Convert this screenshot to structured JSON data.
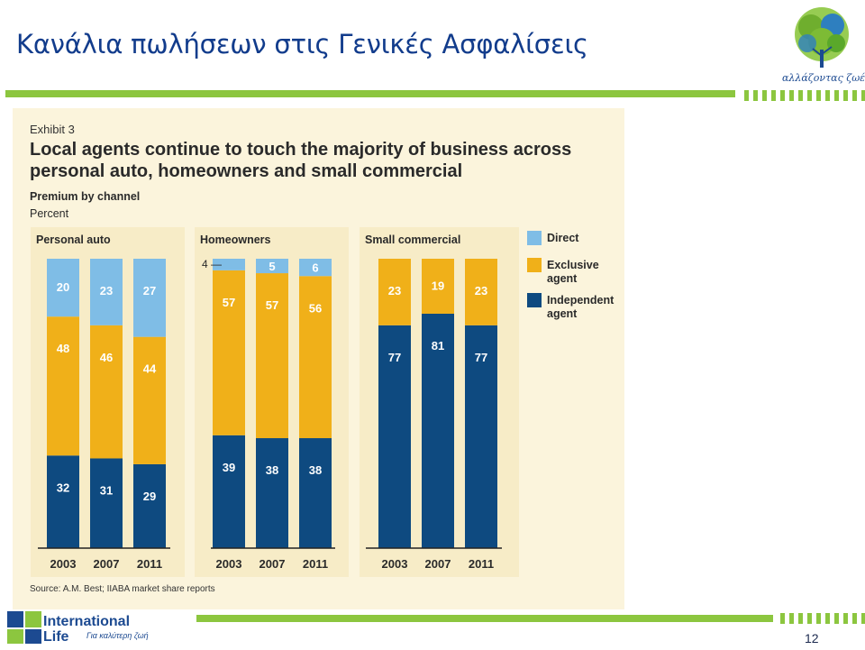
{
  "slide": {
    "title": "Κανάλια πωλήσεων στις Γενικές Ασφαλίσεις",
    "logo_caption": "αλλάζοντας ζωές",
    "page_number": "12",
    "brand_line1": "International",
    "brand_line2": "Life",
    "brand_tagline": "Για καλύτερη ζωή"
  },
  "colors": {
    "title": "#123c8c",
    "green": "#8cc63f",
    "panel": "#fbf4dc",
    "group_panel": "#f7ecc7",
    "direct": "#7fbde6",
    "exclusive": "#f0b019",
    "independent": "#0e4a80"
  },
  "chart_data": {
    "type": "bar",
    "stacked": true,
    "exhibit": "Exhibit 3",
    "title": "Local agents continue to touch the majority of business across personal auto, homeowners and small commercial",
    "subtitle": "Premium by channel",
    "unit": "Percent",
    "source": "Source: A.M. Best; IIABA market share reports",
    "ylim": [
      0,
      100
    ],
    "legend": {
      "placement": "right",
      "entries": [
        {
          "name": "Direct",
          "color": "#7fbde6"
        },
        {
          "name": "Exclusive agent",
          "color": "#f0b019"
        },
        {
          "name": "Independent agent",
          "color": "#0e4a80"
        }
      ]
    },
    "groups": [
      {
        "name": "Personal auto",
        "categories": [
          "2003",
          "2007",
          "2011"
        ],
        "series": [
          {
            "name": "Independent agent",
            "values": [
              32,
              31,
              29
            ]
          },
          {
            "name": "Exclusive agent",
            "values": [
              48,
              46,
              44
            ]
          },
          {
            "name": "Direct",
            "values": [
              20,
              23,
              27
            ]
          }
        ]
      },
      {
        "name": "Homeowners",
        "categories": [
          "2003",
          "2007",
          "2011"
        ],
        "series": [
          {
            "name": "Independent agent",
            "values": [
              39,
              38,
              38
            ]
          },
          {
            "name": "Exclusive agent",
            "values": [
              57,
              57,
              56
            ]
          },
          {
            "name": "Direct",
            "values": [
              4,
              5,
              6
            ]
          }
        ]
      },
      {
        "name": "Small commercial",
        "categories": [
          "2003",
          "2007",
          "2011"
        ],
        "series": [
          {
            "name": "Independent agent",
            "values": [
              77,
              81,
              77
            ]
          },
          {
            "name": "Exclusive agent",
            "values": [
              23,
              19,
              23
            ]
          }
        ]
      }
    ]
  }
}
